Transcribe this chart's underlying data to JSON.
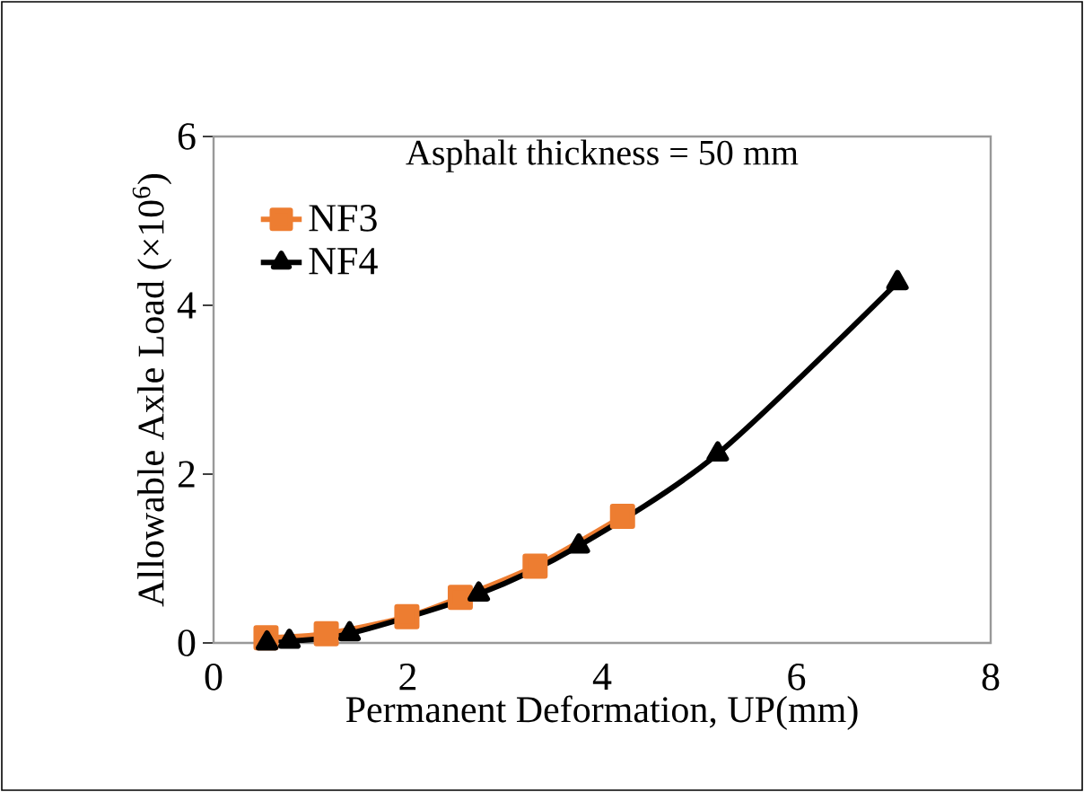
{
  "chart_data": {
    "type": "line",
    "title": "Asphalt thickness = 50 mm",
    "xlabel": "Permanent Deformation, UP(mm)",
    "ylabel": "Allowable Axle Load (×10$^{6}$)",
    "xlim": [
      0,
      8
    ],
    "xticks": [
      0,
      2,
      4,
      6,
      8
    ],
    "ylim": [
      0,
      6
    ],
    "yticks": [
      0,
      2,
      4,
      6
    ],
    "legend": "top left",
    "grid": false,
    "line_style": "solid",
    "series": [
      {
        "name": "NF3",
        "color": "#ed7d31",
        "marker": "square",
        "x": [
          0.54,
          1.16,
          1.99,
          2.54,
          3.31,
          4.21
        ],
        "values": [
          0.06,
          0.11,
          0.31,
          0.54,
          0.91,
          1.5
        ]
      },
      {
        "name": "NF4",
        "color": "#000000",
        "marker": "triangle",
        "x": [
          0.55,
          0.78,
          1.4,
          2.73,
          3.76,
          5.19,
          7.04
        ],
        "values": [
          0.0,
          0.02,
          0.11,
          0.58,
          1.15,
          2.24,
          4.27
        ]
      }
    ]
  }
}
